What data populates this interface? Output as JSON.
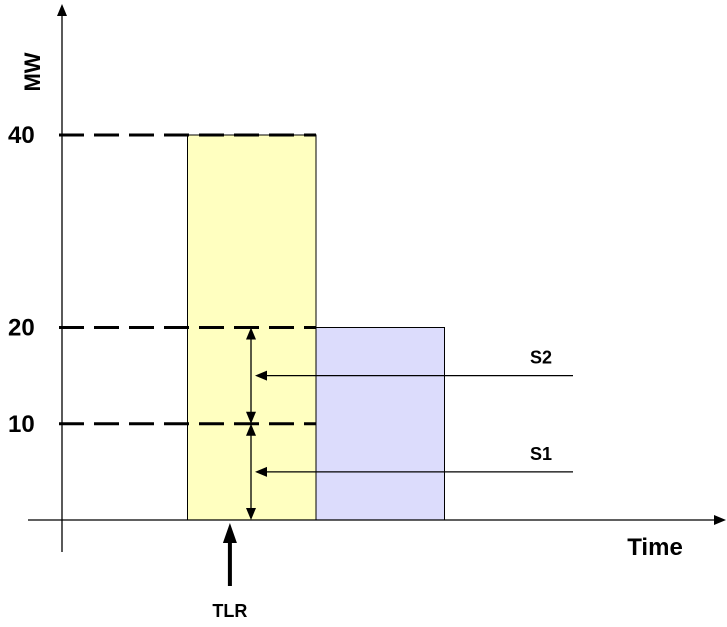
{
  "chart_data": {
    "type": "bar",
    "title": "",
    "xlabel": "Time",
    "ylabel": "MW",
    "ylim": [
      0,
      40
    ],
    "yticks": [
      {
        "value": 40,
        "label": "40"
      },
      {
        "value": 20,
        "label": "20"
      },
      {
        "value": 10,
        "label": "10"
      }
    ],
    "bars": [
      {
        "x_start": 1,
        "x_end": 2,
        "value": 40,
        "color": "#FFFFC0"
      },
      {
        "x_start": 2,
        "x_end": 3,
        "value": 20,
        "color": "#DCDCFC"
      }
    ],
    "dashed_levels": [
      40,
      20,
      10
    ],
    "annotations": [
      {
        "label": "S2",
        "y": 15,
        "span": [
          10,
          20
        ]
      },
      {
        "label": "S1",
        "y": 5,
        "span": [
          0,
          10
        ]
      },
      {
        "label": "TLR",
        "at_x": 1.33
      }
    ]
  }
}
